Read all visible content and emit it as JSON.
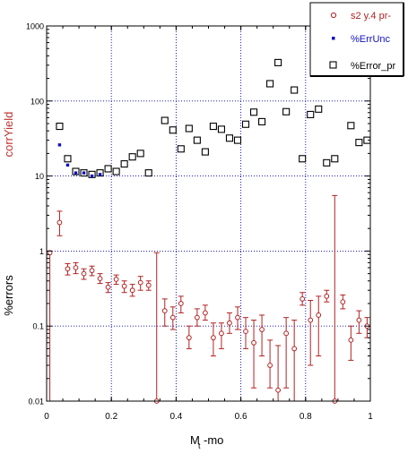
{
  "chart_data": {
    "type": "scatter",
    "xlabel_main": "M",
    "xlabel_sub": "t",
    "xlabel_suffix": "-mo",
    "ylabel_top": "corrYield",
    "ylabel_bottom": "%errors",
    "xlim": [
      0,
      1
    ],
    "ylim": [
      0.01,
      1000
    ],
    "yscale": "log",
    "grid": "dotted",
    "legend_placement": "top-right",
    "x_ticks": [
      "0",
      "0.2",
      "0.4",
      "0.6",
      "0.8",
      "1"
    ],
    "x_tick_values": [
      0,
      0.2,
      0.4,
      0.6,
      0.8,
      1
    ],
    "y_ticks": [
      "0.01",
      "0.1",
      "1",
      "10",
      "100",
      "1000"
    ],
    "y_tick_values": [
      0.01,
      0.1,
      1,
      10,
      100,
      1000
    ],
    "colors": {
      "red": "#b22222",
      "blue": "#1010c0",
      "black": "#000000",
      "grid": "#0000bb",
      "axis_text": "#c03030"
    },
    "series": [
      {
        "name": "s2 y.4 pr-",
        "marker": "open-circle",
        "color": "#b22222",
        "points": [
          {
            "x": 0.01,
            "y": 0.95,
            "lo": 0.01,
            "hi": 1.0
          },
          {
            "x": 0.04,
            "y": 2.4,
            "lo": 1.6,
            "hi": 3.4
          },
          {
            "x": 0.065,
            "y": 0.58,
            "lo": 0.48,
            "hi": 0.68
          },
          {
            "x": 0.09,
            "y": 0.6,
            "lo": 0.5,
            "hi": 0.7
          },
          {
            "x": 0.115,
            "y": 0.5,
            "lo": 0.42,
            "hi": 0.58
          },
          {
            "x": 0.14,
            "y": 0.55,
            "lo": 0.47,
            "hi": 0.63
          },
          {
            "x": 0.165,
            "y": 0.43,
            "lo": 0.37,
            "hi": 0.5
          },
          {
            "x": 0.19,
            "y": 0.33,
            "lo": 0.28,
            "hi": 0.38
          },
          {
            "x": 0.215,
            "y": 0.42,
            "lo": 0.36,
            "hi": 0.48
          },
          {
            "x": 0.24,
            "y": 0.34,
            "lo": 0.28,
            "hi": 0.4
          },
          {
            "x": 0.265,
            "y": 0.3,
            "lo": 0.25,
            "hi": 0.36
          },
          {
            "x": 0.29,
            "y": 0.38,
            "lo": 0.3,
            "hi": 0.46
          },
          {
            "x": 0.315,
            "y": 0.35,
            "lo": 0.3,
            "hi": 0.4
          },
          {
            "x": 0.34,
            "y": 0.01,
            "lo": 0.01,
            "hi": 0.95
          },
          {
            "x": 0.365,
            "y": 0.16,
            "lo": 0.1,
            "hi": 0.23
          },
          {
            "x": 0.39,
            "y": 0.13,
            "lo": 0.09,
            "hi": 0.18
          },
          {
            "x": 0.415,
            "y": 0.2,
            "lo": 0.15,
            "hi": 0.25
          },
          {
            "x": 0.44,
            "y": 0.07,
            "lo": 0.05,
            "hi": 0.1
          },
          {
            "x": 0.465,
            "y": 0.13,
            "lo": 0.1,
            "hi": 0.17
          },
          {
            "x": 0.49,
            "y": 0.15,
            "lo": 0.12,
            "hi": 0.19
          },
          {
            "x": 0.515,
            "y": 0.07,
            "lo": 0.04,
            "hi": 0.11
          },
          {
            "x": 0.54,
            "y": 0.08,
            "lo": 0.05,
            "hi": 0.11
          },
          {
            "x": 0.565,
            "y": 0.11,
            "lo": 0.08,
            "hi": 0.15
          },
          {
            "x": 0.59,
            "y": 0.13,
            "lo": 0.09,
            "hi": 0.18
          },
          {
            "x": 0.615,
            "y": 0.085,
            "lo": 0.05,
            "hi": 0.13
          },
          {
            "x": 0.64,
            "y": 0.06,
            "lo": 0.015,
            "hi": 0.12
          },
          {
            "x": 0.665,
            "y": 0.09,
            "lo": 0.04,
            "hi": 0.14
          },
          {
            "x": 0.69,
            "y": 0.03,
            "lo": 0.015,
            "hi": 0.065
          },
          {
            "x": 0.715,
            "y": 0.014,
            "lo": 0.01,
            "hi": 0.055
          },
          {
            "x": 0.74,
            "y": 0.08,
            "lo": 0.015,
            "hi": 0.13
          },
          {
            "x": 0.765,
            "y": 0.05,
            "lo": 0.01,
            "hi": 0.12
          },
          {
            "x": 0.79,
            "y": 0.23,
            "lo": 0.19,
            "hi": 0.28
          },
          {
            "x": 0.815,
            "y": 0.12,
            "lo": 0.03,
            "hi": 0.22
          },
          {
            "x": 0.84,
            "y": 0.14,
            "lo": 0.04,
            "hi": 0.25
          },
          {
            "x": 0.865,
            "y": 0.25,
            "lo": 0.21,
            "hi": 0.3
          },
          {
            "x": 0.89,
            "y": 0.01,
            "lo": 0.01,
            "hi": 5.5
          },
          {
            "x": 0.915,
            "y": 0.21,
            "lo": 0.17,
            "hi": 0.26
          },
          {
            "x": 0.94,
            "y": 0.065,
            "lo": 0.035,
            "hi": 0.1
          },
          {
            "x": 0.965,
            "y": 0.12,
            "lo": 0.08,
            "hi": 0.16
          },
          {
            "x": 0.99,
            "y": 0.1,
            "lo": 0.07,
            "hi": 0.13
          }
        ]
      },
      {
        "name": "%ErrUnc",
        "marker": "small-filled-square",
        "color": "#1010c0",
        "points": [
          {
            "x": 0.04,
            "y": 26
          },
          {
            "x": 0.065,
            "y": 14
          },
          {
            "x": 0.09,
            "y": 11
          },
          {
            "x": 0.115,
            "y": 11
          },
          {
            "x": 0.14,
            "y": 10
          },
          {
            "x": 0.165,
            "y": 10.5
          }
        ]
      },
      {
        "name": "%Error_pr",
        "marker": "open-square",
        "color": "#000000",
        "points": [
          {
            "x": 0.04,
            "y": 46
          },
          {
            "x": 0.065,
            "y": 17
          },
          {
            "x": 0.09,
            "y": 11.5
          },
          {
            "x": 0.115,
            "y": 11
          },
          {
            "x": 0.14,
            "y": 10.5
          },
          {
            "x": 0.165,
            "y": 11
          },
          {
            "x": 0.19,
            "y": 12.5
          },
          {
            "x": 0.215,
            "y": 11.5
          },
          {
            "x": 0.24,
            "y": 14.5
          },
          {
            "x": 0.265,
            "y": 18
          },
          {
            "x": 0.29,
            "y": 20
          },
          {
            "x": 0.315,
            "y": 11
          },
          {
            "x": 0.365,
            "y": 55
          },
          {
            "x": 0.39,
            "y": 41
          },
          {
            "x": 0.415,
            "y": 23
          },
          {
            "x": 0.44,
            "y": 43
          },
          {
            "x": 0.465,
            "y": 30
          },
          {
            "x": 0.49,
            "y": 21
          },
          {
            "x": 0.515,
            "y": 46
          },
          {
            "x": 0.54,
            "y": 42
          },
          {
            "x": 0.565,
            "y": 32
          },
          {
            "x": 0.59,
            "y": 30
          },
          {
            "x": 0.615,
            "y": 49
          },
          {
            "x": 0.64,
            "y": 71
          },
          {
            "x": 0.665,
            "y": 53
          },
          {
            "x": 0.69,
            "y": 170
          },
          {
            "x": 0.715,
            "y": 325
          },
          {
            "x": 0.74,
            "y": 72
          },
          {
            "x": 0.765,
            "y": 140
          },
          {
            "x": 0.79,
            "y": 17
          },
          {
            "x": 0.815,
            "y": 66
          },
          {
            "x": 0.84,
            "y": 78
          },
          {
            "x": 0.865,
            "y": 15
          },
          {
            "x": 0.89,
            "y": 17
          },
          {
            "x": 0.94,
            "y": 47
          },
          {
            "x": 0.965,
            "y": 28
          },
          {
            "x": 0.99,
            "y": 30
          }
        ]
      }
    ]
  }
}
